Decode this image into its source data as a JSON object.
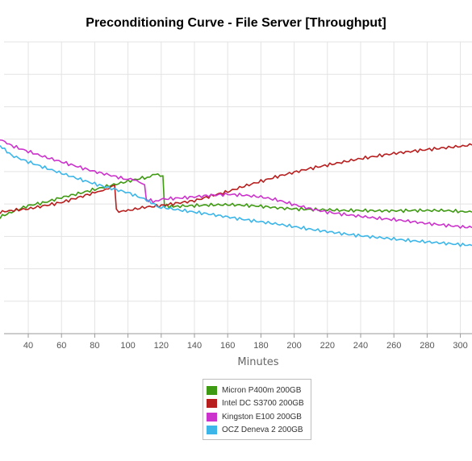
{
  "chart_data": {
    "type": "line",
    "title": "Preconditioning Curve - File Server [Throughput]",
    "xlabel": "Minutes",
    "ylabel": "",
    "xlim": [
      23,
      307
    ],
    "ylim": [
      0,
      9
    ],
    "x_ticks": [
      40,
      60,
      80,
      100,
      120,
      140,
      160,
      180,
      200,
      220,
      240,
      260,
      280,
      300
    ],
    "grid": true,
    "legend_position": "bottom",
    "series": [
      {
        "name": "Micron P400m 200GB",
        "color": "#3f9a13",
        "x": [
          23,
          30,
          40,
          50,
          60,
          70,
          80,
          90,
          100,
          110,
          118,
          121,
          122,
          126,
          130,
          140,
          150,
          160,
          170,
          180,
          190,
          200,
          210,
          220,
          230,
          240,
          250,
          260,
          270,
          280,
          290,
          300,
          307
        ],
        "y": [
          3.6,
          3.75,
          3.95,
          4.05,
          4.2,
          4.32,
          4.45,
          4.58,
          4.7,
          4.82,
          4.9,
          4.88,
          3.95,
          3.92,
          3.93,
          3.95,
          3.97,
          3.98,
          3.96,
          3.93,
          3.88,
          3.85,
          3.83,
          3.82,
          3.8,
          3.8,
          3.79,
          3.79,
          3.8,
          3.8,
          3.8,
          3.77,
          3.75
        ]
      },
      {
        "name": "Intel DC S3700 200GB",
        "color": "#b81e1e",
        "x": [
          23,
          30,
          40,
          50,
          60,
          70,
          80,
          85,
          90,
          92,
          93,
          96,
          100,
          110,
          120,
          130,
          140,
          150,
          160,
          170,
          180,
          190,
          200,
          210,
          220,
          230,
          240,
          250,
          260,
          270,
          280,
          290,
          300,
          307
        ],
        "y": [
          3.75,
          3.8,
          3.85,
          3.95,
          4.05,
          4.2,
          4.35,
          4.45,
          4.55,
          4.6,
          3.8,
          3.78,
          3.8,
          3.9,
          3.95,
          4.03,
          4.1,
          4.25,
          4.38,
          4.55,
          4.7,
          4.85,
          4.98,
          5.1,
          5.2,
          5.3,
          5.4,
          5.48,
          5.56,
          5.62,
          5.68,
          5.73,
          5.78,
          5.82
        ]
      },
      {
        "name": "Kingston E100 200GB",
        "color": "#cc33cc",
        "x": [
          23,
          30,
          40,
          50,
          60,
          70,
          80,
          90,
          100,
          105,
          110,
          111,
          115,
          120,
          130,
          140,
          150,
          160,
          170,
          180,
          190,
          200,
          210,
          220,
          230,
          240,
          250,
          260,
          270,
          280,
          290,
          300,
          307
        ],
        "y": [
          6.0,
          5.8,
          5.62,
          5.45,
          5.3,
          5.15,
          5.0,
          4.88,
          4.75,
          4.7,
          4.6,
          4.12,
          4.1,
          4.15,
          4.18,
          4.22,
          4.27,
          4.3,
          4.27,
          4.22,
          4.12,
          3.98,
          3.85,
          3.75,
          3.68,
          3.62,
          3.56,
          3.52,
          3.46,
          3.4,
          3.35,
          3.3,
          3.27
        ]
      },
      {
        "name": "OCZ Deneva 2 200GB",
        "color": "#3cb6e8",
        "x": [
          23,
          30,
          40,
          50,
          60,
          70,
          80,
          90,
          100,
          110,
          114,
          116,
          117,
          120,
          130,
          140,
          150,
          160,
          170,
          180,
          190,
          200,
          210,
          220,
          230,
          240,
          250,
          260,
          270,
          280,
          290,
          300,
          307
        ],
        "y": [
          5.8,
          5.5,
          5.3,
          5.12,
          4.95,
          4.78,
          4.62,
          4.48,
          4.35,
          4.15,
          4.05,
          4.0,
          3.92,
          3.9,
          3.82,
          3.75,
          3.68,
          3.6,
          3.52,
          3.45,
          3.38,
          3.3,
          3.22,
          3.15,
          3.08,
          3.02,
          2.97,
          2.92,
          2.87,
          2.83,
          2.79,
          2.75,
          2.72
        ]
      }
    ]
  }
}
